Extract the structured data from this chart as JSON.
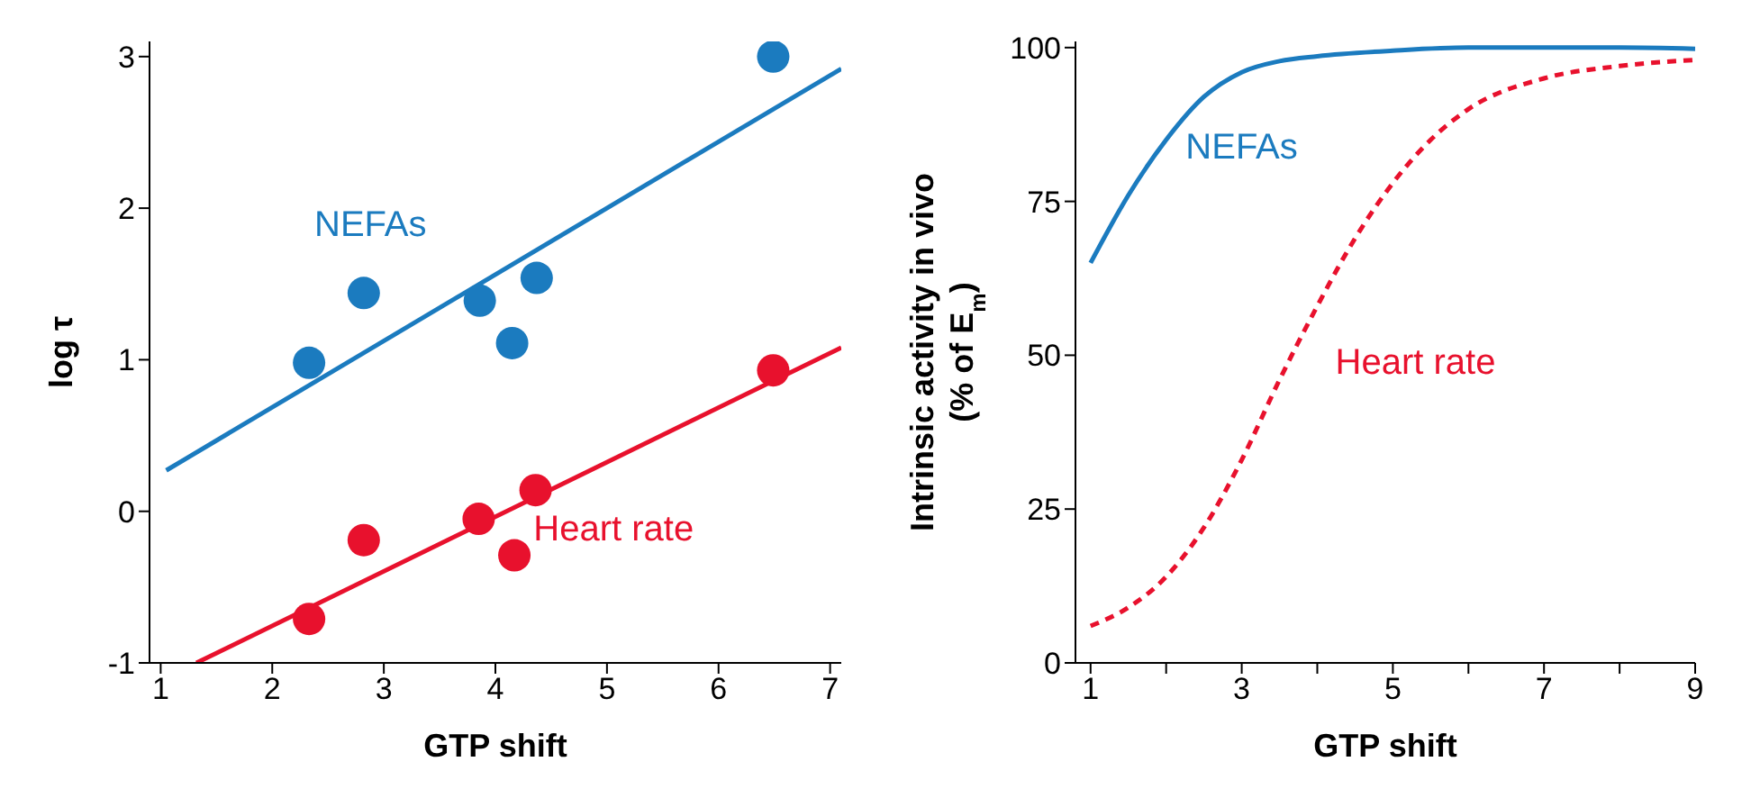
{
  "chart_data": [
    {
      "type": "scatter",
      "xlabel": "GTP shift",
      "ylabel": "log τ",
      "xlim": [
        0.9,
        7.1
      ],
      "ylim": [
        -1,
        3.1
      ],
      "xticks": [
        1,
        2,
        3,
        4,
        5,
        6,
        7
      ],
      "yticks": [
        -1,
        0,
        1,
        2,
        3
      ],
      "grid": false,
      "legend": false,
      "series": [
        {
          "name": "NEFAs",
          "marker": "circle",
          "color": "#1b7bbf",
          "x": [
            2.33,
            2.82,
            3.86,
            4.15,
            4.37,
            6.49
          ],
          "values": [
            0.98,
            1.44,
            1.39,
            1.11,
            1.54,
            3.0
          ]
        },
        {
          "type": "line",
          "color": "#1b7bbf",
          "x": [
            1.05,
            7.1
          ],
          "values": [
            0.27,
            2.92
          ]
        },
        {
          "name": "Heart rate",
          "marker": "circle",
          "color": "#e8112d",
          "x": [
            2.33,
            2.82,
            3.85,
            4.17,
            4.36,
            6.49
          ],
          "values": [
            -0.71,
            -0.19,
            -0.05,
            -0.29,
            0.14,
            0.93
          ]
        },
        {
          "type": "line",
          "color": "#e8112d",
          "x": [
            1.32,
            7.1
          ],
          "values": [
            -1,
            1.08
          ]
        }
      ]
    },
    {
      "type": "line",
      "xlabel": "GTP shift",
      "ylabel": "Intrinsic activity in vivo\n(% of E$_{m}$)",
      "xlim": [
        0.8,
        9
      ],
      "ylim": [
        0,
        101
      ],
      "xticks": [
        1,
        {
          "value": 2,
          "label": null
        },
        3,
        {
          "value": 4,
          "label": null
        },
        5,
        {
          "value": 6,
          "label": null
        },
        7,
        {
          "value": 8,
          "label": null
        },
        9
      ],
      "yticks": [
        0,
        25,
        50,
        75,
        100
      ],
      "grid": false,
      "legend": false,
      "series": [
        {
          "name": "NEFAs",
          "color": "#1b7bbf",
          "line_style": "solid",
          "x": [
            1,
            1.5,
            2,
            2.5,
            3,
            3.5,
            4,
            5,
            6,
            7,
            8,
            9
          ],
          "values": [
            65,
            76,
            85,
            92,
            96,
            97.8,
            98.6,
            99.5,
            100,
            100,
            100,
            99.8
          ]
        },
        {
          "name": "Heart rate",
          "color": "#e8112d",
          "line_style": "dashed",
          "x": [
            1,
            1.5,
            2,
            2.5,
            3,
            3.5,
            4,
            4.5,
            5,
            5.5,
            6,
            7,
            8,
            9
          ],
          "values": [
            6,
            9,
            14,
            22,
            33,
            46,
            58,
            69,
            78,
            85,
            90,
            95,
            97,
            98
          ]
        }
      ]
    }
  ]
}
